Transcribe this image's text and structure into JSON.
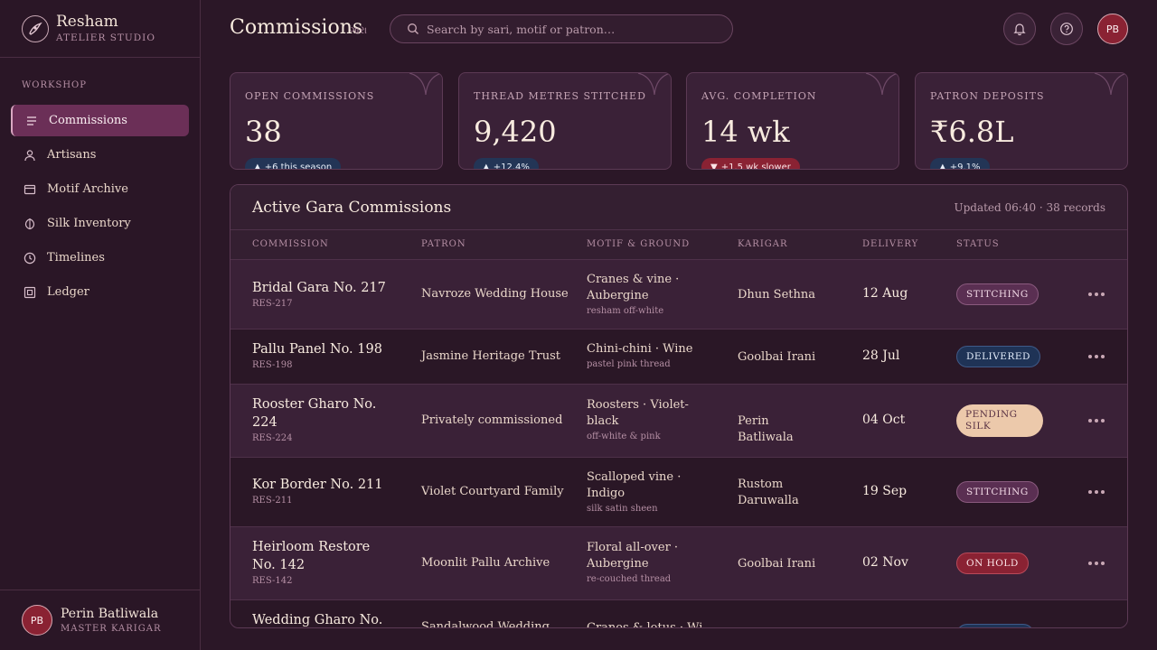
{
  "brand": {
    "name": "Resham",
    "sub": "ATELIER STUDIO"
  },
  "sidebar": {
    "section": "WORKSHOP",
    "items": [
      {
        "label": "Commissions",
        "icon": "list-icon"
      },
      {
        "label": "Artisans",
        "icon": "user-icon"
      },
      {
        "label": "Motif Archive",
        "icon": "card-icon"
      },
      {
        "label": "Silk Inventory",
        "icon": "leaf-icon"
      },
      {
        "label": "Timelines",
        "icon": "clock-icon"
      },
      {
        "label": "Ledger",
        "icon": "ledger-icon"
      }
    ]
  },
  "user": {
    "initials": "PB",
    "name": "Perin Batliwala",
    "role": "MASTER KARIGAR"
  },
  "header": {
    "title": "Commissions",
    "title_sub": "ગારા",
    "search_placeholder": "Search by sari, motif or patron…",
    "avatar": "PB"
  },
  "stats": [
    {
      "label": "OPEN COMMISSIONS",
      "value": "38",
      "delta": "+6 this season",
      "direction": "up"
    },
    {
      "label": "THREAD METRES STITCHED",
      "value": "9,420",
      "delta": "+12.4%",
      "direction": "up"
    },
    {
      "label": "AVG. COMPLETION",
      "value": "14 wk",
      "delta": "+1.5 wk slower",
      "direction": "down"
    },
    {
      "label": "PATRON DEPOSITS",
      "value": "₹6.8L",
      "delta": "+9.1%",
      "direction": "up"
    }
  ],
  "table": {
    "title": "Active Gara Commissions",
    "meta": "Updated 06:40 · 38 records",
    "columns": [
      "COMMISSION",
      "PATRON",
      "MOTIF & GROUND",
      "KARIGAR",
      "DELIVERY",
      "STATUS"
    ],
    "rows": [
      {
        "name": "Bridal Gara No. 217",
        "code": "RES-217",
        "patron": "Navroze Wedding House",
        "motif": "Cranes & vine · Aubergine",
        "motif_sub": "resham off-white",
        "karigar": "Dhun Sethna",
        "delivery": "12 Aug",
        "status": "STITCHING"
      },
      {
        "name": "Pallu Panel No. 198",
        "code": "RES-198",
        "patron": "Jasmine Heritage Trust",
        "motif": "Chini-chini · Wine",
        "motif_sub": "pastel pink thread",
        "karigar": "Goolbai Irani",
        "delivery": "28 Jul",
        "status": "DELIVERED"
      },
      {
        "name": "Rooster Gharo No. 224",
        "code": "RES-224",
        "patron": "Privately commissioned",
        "motif": "Roosters · Violet-black",
        "motif_sub": "off-white & pink",
        "karigar": "Perin Batliwala",
        "delivery": "04 Oct",
        "status": "PENDING SILK"
      },
      {
        "name": "Kor Border No. 211",
        "code": "RES-211",
        "patron": "Violet Courtyard Family",
        "motif": "Scalloped vine · Indigo",
        "motif_sub": "silk satin sheen",
        "karigar": "Rustom Daruwalla",
        "delivery": "19 Sep",
        "status": "STITCHING"
      },
      {
        "name": "Heirloom Restore No. 142",
        "code": "RES-142",
        "patron": "Moonlit Pallu Archive",
        "motif": "Floral all-over · Aubergine",
        "motif_sub": "re-couched thread",
        "karigar": "Goolbai Irani",
        "delivery": "02 Nov",
        "status": "ON HOLD"
      },
      {
        "name": "Wedding Gharo No.",
        "code": "",
        "patron": "Sandalwood Wedding",
        "motif": "Cranes & lotus · Wi",
        "motif_sub": "",
        "karigar": "",
        "delivery": "",
        "status": ""
      }
    ]
  }
}
